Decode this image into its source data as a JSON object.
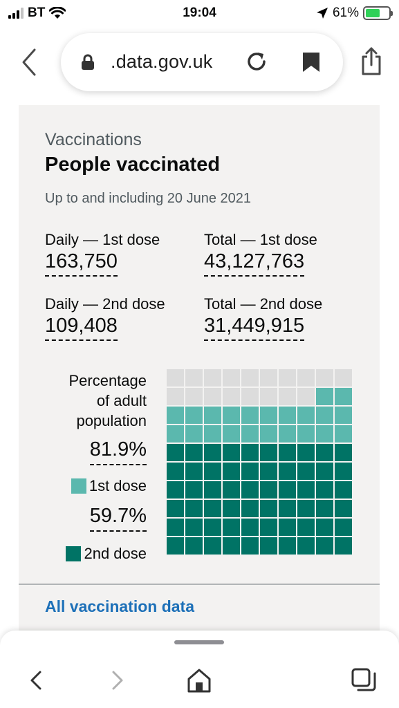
{
  "status_bar": {
    "carrier": "BT",
    "time": "19:04",
    "battery": "61%",
    "battery_level": 0.61,
    "icons": [
      "signal-icon",
      "wifi-icon",
      "location-arrow-icon",
      "battery-charging-icon"
    ]
  },
  "browser": {
    "url_display": ".data.gov.uk",
    "icons": [
      "back-icon",
      "lock-icon",
      "reload-icon",
      "bookmark-icon",
      "share-icon"
    ]
  },
  "card": {
    "caption": "Vaccinations",
    "heading": "People vaccinated",
    "updated": "Up to and including 20 June 2021",
    "stats": {
      "daily_first": {
        "label": "Daily — 1st dose",
        "value": "163,750"
      },
      "total_first": {
        "label": "Total — 1st dose",
        "value": "43,127,763"
      },
      "daily_second": {
        "label": "Daily — 2nd dose",
        "value": "109,408"
      },
      "total_second": {
        "label": "Total — 2nd dose",
        "value": "31,449,915"
      }
    },
    "percentage": {
      "title_lines": [
        "Percentage",
        "of adult",
        "population"
      ],
      "first": {
        "value": "81.9%",
        "legend": "1st dose",
        "color": "#5bb8ae",
        "fraction": 0.819
      },
      "second": {
        "value": "59.7%",
        "legend": "2nd dose",
        "color": "#007365",
        "fraction": 0.597
      },
      "empty_color": "#dcdcdc"
    },
    "link": "All vaccination data"
  },
  "toolbar": {
    "icons": [
      "back-icon",
      "forward-icon",
      "home-icon",
      "tabs-icon"
    ]
  },
  "colors": {
    "link": "#1d70b8",
    "card_bg": "#f3f2f1",
    "dose1": "#5bb8ae",
    "dose2": "#007365"
  }
}
